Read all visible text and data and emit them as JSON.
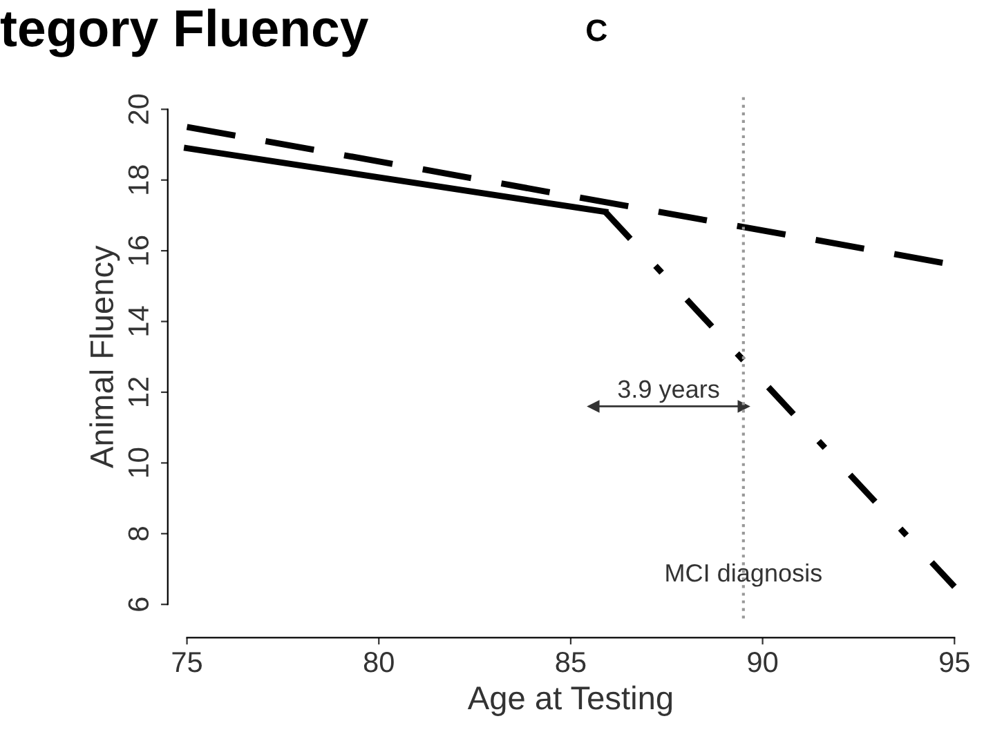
{
  "chart_data": {
    "type": "line",
    "title": "tegory Fluency",
    "subtitle": "C",
    "xlabel": "Age at Testing",
    "ylabel": "Animal Fluency",
    "series": [
      {
        "color": "#000000",
        "line_style": "solid",
        "x": [
          75,
          85.9
        ],
        "values": [
          18.9,
          17.1
        ]
      },
      {
        "color": "#000000",
        "line_style": "dashed",
        "x": [
          75,
          95
        ],
        "values": [
          19.5,
          15.6
        ]
      },
      {
        "color": "#000000",
        "line_style": "dashdot",
        "x": [
          85.9,
          89.5,
          95
        ],
        "values": [
          17.1,
          12.9,
          6.5
        ]
      },
      {
        "color": "#333333",
        "line_style": "solid",
        "marker": "triangle",
        "x": [
          85.6,
          89.5
        ],
        "values": [
          11.6,
          11.6
        ]
      }
    ],
    "xlim": [
      75,
      95
    ],
    "ylim": [
      5.6,
      20.4
    ],
    "xticks": [
      75,
      80,
      85,
      90,
      95
    ],
    "yticks": [
      6,
      8,
      10,
      12,
      14,
      16,
      18,
      20
    ],
    "ref_lines": [
      {
        "axis": "x",
        "value": 89.5,
        "label": "MCI diagnosis",
        "color": "#999999",
        "line_style": "dotted"
      }
    ],
    "annotations": [
      "3.9 years"
    ],
    "grid": false
  }
}
